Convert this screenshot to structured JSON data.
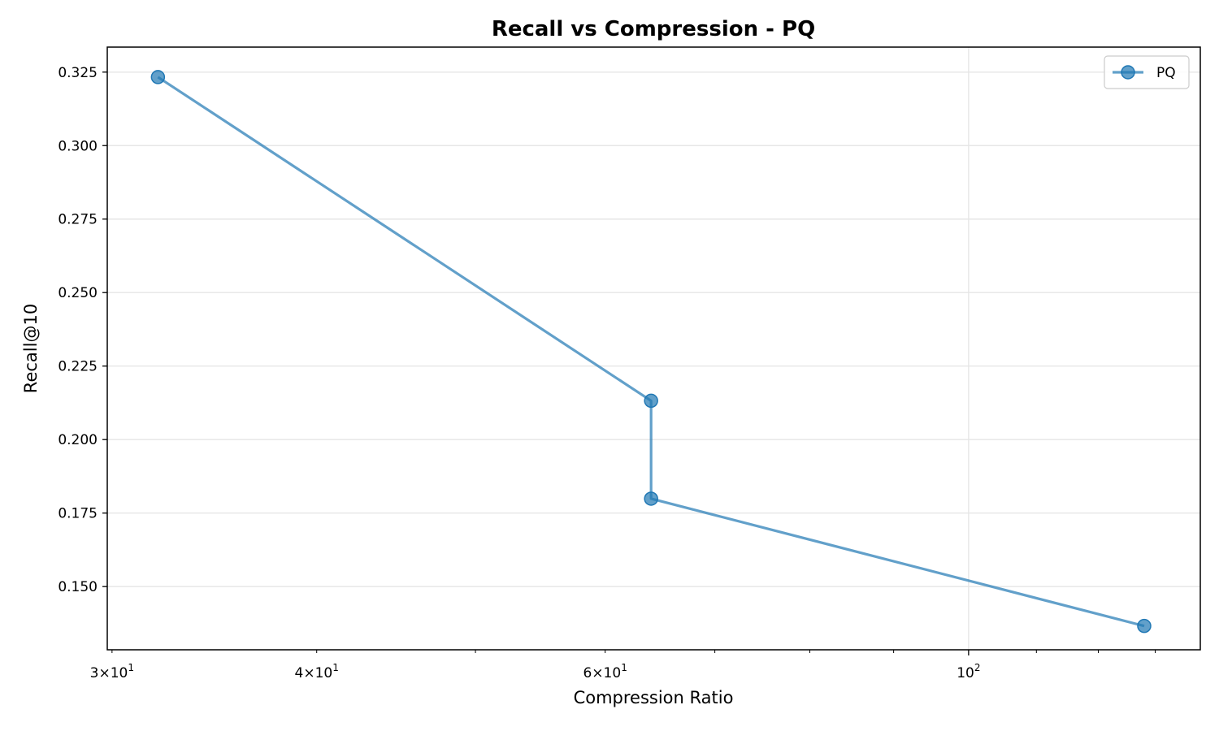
{
  "chart_data": {
    "type": "line",
    "title": "Recall vs Compression - PQ",
    "xlabel": "Compression Ratio",
    "ylabel": "Recall@10",
    "x_scale": "log",
    "xlim": [
      29.8,
      138.5
    ],
    "ylim": [
      0.1285,
      0.3335
    ],
    "x_ticks": [
      {
        "value": 30,
        "label": "3×10"
      },
      {
        "value": 40,
        "label": "4×10"
      },
      {
        "value": 60,
        "label": "6×10"
      },
      {
        "value": 100,
        "label": "10"
      }
    ],
    "x_tick_exponents": [
      "1",
      "1",
      "1",
      "2"
    ],
    "y_ticks": [
      {
        "value": 0.15,
        "label": "0.150"
      },
      {
        "value": 0.175,
        "label": "0.175"
      },
      {
        "value": 0.2,
        "label": "0.200"
      },
      {
        "value": 0.225,
        "label": "0.225"
      },
      {
        "value": 0.25,
        "label": "0.250"
      },
      {
        "value": 0.275,
        "label": "0.275"
      },
      {
        "value": 0.3,
        "label": "0.300"
      },
      {
        "value": 0.325,
        "label": "0.325"
      }
    ],
    "grid": true,
    "legend_position": "top-right",
    "series": [
      {
        "name": "PQ",
        "color": "#1f77b4",
        "x": [
          32,
          64,
          64,
          128
        ],
        "y": [
          0.3233,
          0.2132,
          0.1799,
          0.1366
        ]
      }
    ]
  }
}
